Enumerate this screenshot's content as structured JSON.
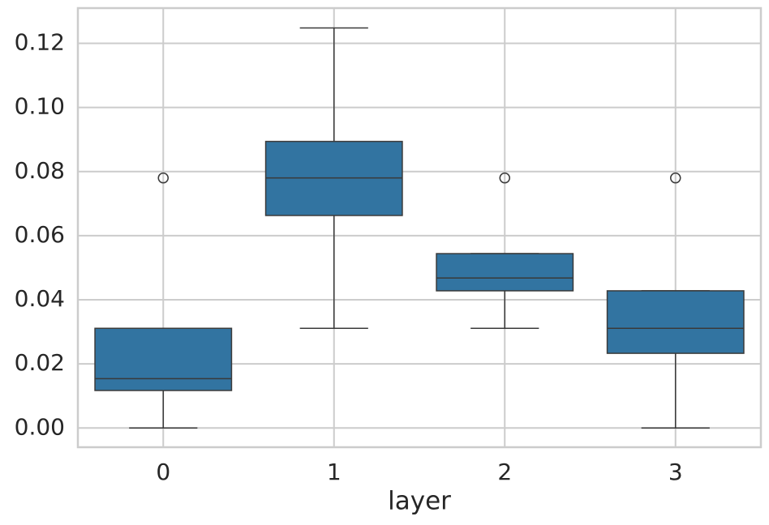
{
  "chart_data": {
    "type": "box",
    "xlabel": "layer",
    "categories": [
      "0",
      "1",
      "2",
      "3"
    ],
    "color": "#3274a1",
    "boxes": [
      {
        "whislo": 0,
        "q1": 0.0117,
        "med": 0.0154,
        "q3": 0.0311,
        "whishi": 0.0311,
        "fliers": [
          0.078
        ]
      },
      {
        "whislo": 0.0311,
        "q1": 0.0663,
        "med": 0.078,
        "q3": 0.0894,
        "whishi": 0.1248,
        "fliers": []
      },
      {
        "whislo": 0.0311,
        "q1": 0.0428,
        "med": 0.0468,
        "q3": 0.0544,
        "whishi": 0.0544,
        "fliers": [
          0.078
        ]
      },
      {
        "whislo": 0,
        "q1": 0.0233,
        "med": 0.0311,
        "q3": 0.0428,
        "whishi": 0.0428,
        "fliers": [
          0.078
        ]
      }
    ],
    "ylim": [
      -0.006,
      0.131
    ],
    "yticks": [
      {
        "value": 0,
        "label": "0.00"
      },
      {
        "value": 0.02,
        "label": "0.02"
      },
      {
        "value": 0.04,
        "label": "0.04"
      },
      {
        "value": 0.06,
        "label": "0.06"
      },
      {
        "value": 0.08,
        "label": "0.08"
      },
      {
        "value": 0.1,
        "label": "0.10"
      },
      {
        "value": 0.12,
        "label": "0.12"
      }
    ],
    "grid": true
  }
}
